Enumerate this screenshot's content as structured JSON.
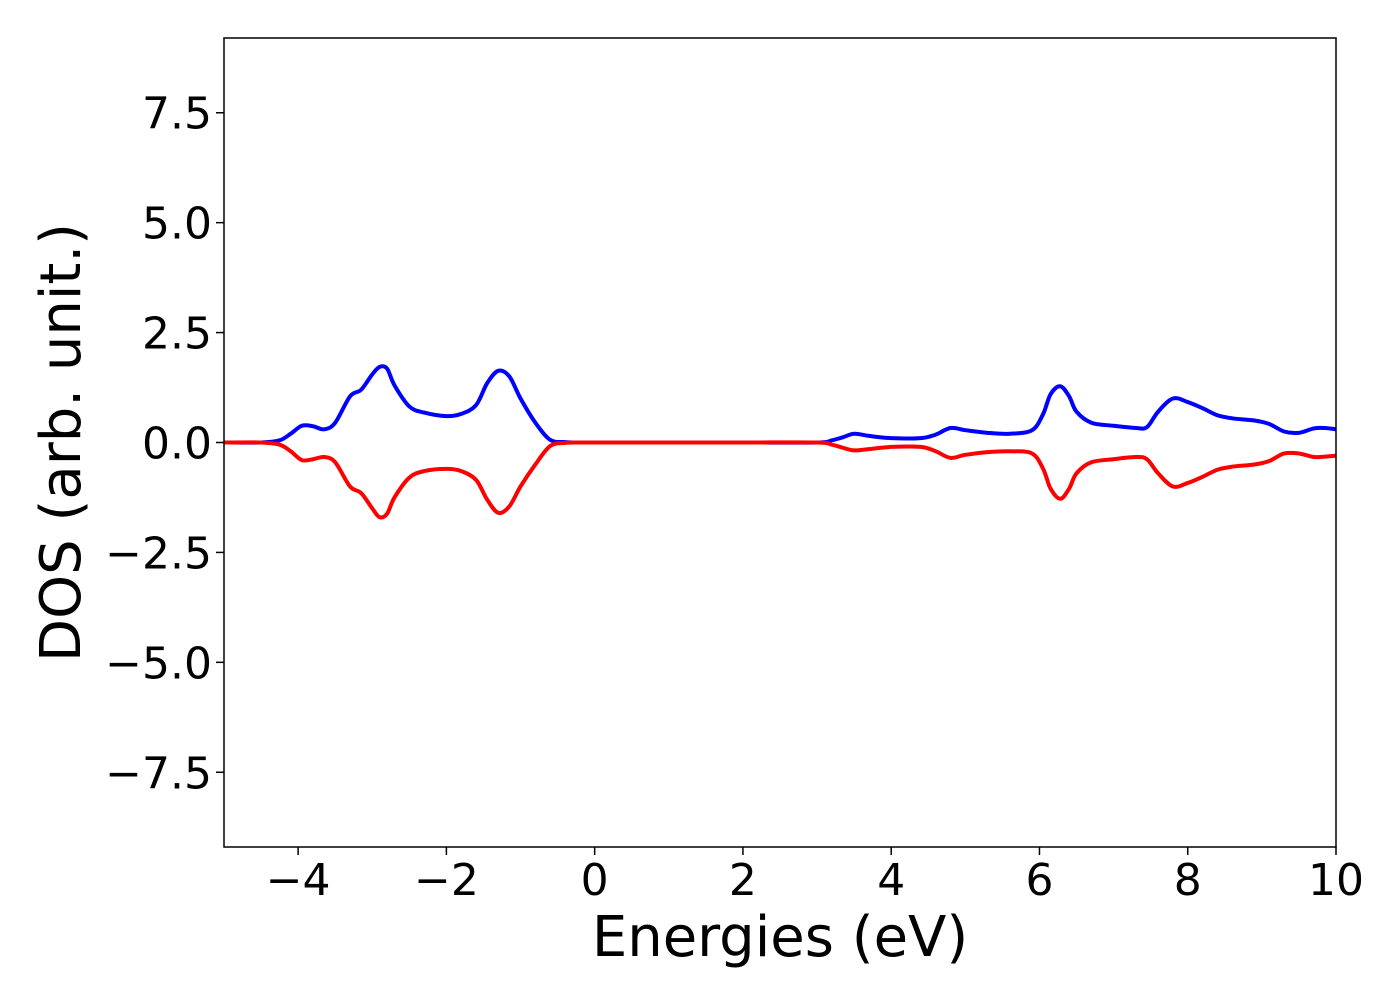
{
  "chart_data": {
    "type": "line",
    "title": "",
    "xlabel": "Energies (eV)",
    "ylabel": "DOS (arb. unit.)",
    "xlim": [
      -5,
      10
    ],
    "ylim": [
      -9.2,
      9.2
    ],
    "xticks": [
      -4,
      -2,
      0,
      2,
      4,
      6,
      8,
      10
    ],
    "xtick_labels": [
      "−4",
      "−2",
      "0",
      "2",
      "4",
      "6",
      "8",
      "10"
    ],
    "yticks": [
      7.5,
      5.0,
      2.5,
      0.0,
      -2.5,
      -5.0,
      -7.5
    ],
    "ytick_labels": [
      "7.5",
      "5.0",
      "2.5",
      "0.0",
      "−2.5",
      "−5.0",
      "−7.5"
    ],
    "grid": false,
    "series": [
      {
        "color": "#0000ff",
        "x": [
          -5,
          -4.5,
          -4.25,
          -4.1,
          -3.95,
          -3.8,
          -3.65,
          -3.5,
          -3.3,
          -3.15,
          -3.0,
          -2.9,
          -2.8,
          -2.7,
          -2.5,
          -2.3,
          -2.0,
          -1.8,
          -1.6,
          -1.45,
          -1.3,
          -1.15,
          -1.0,
          -0.8,
          -0.6,
          -0.4,
          -0.2,
          0,
          1,
          2,
          3.0,
          3.2,
          3.35,
          3.5,
          3.7,
          4.0,
          4.4,
          4.6,
          4.8,
          5.0,
          5.3,
          5.6,
          5.9,
          6.05,
          6.15,
          6.28,
          6.4,
          6.5,
          6.7,
          7.0,
          7.3,
          7.45,
          7.6,
          7.8,
          8.0,
          8.2,
          8.4,
          8.6,
          8.9,
          9.1,
          9.3,
          9.5,
          9.7,
          9.85,
          10.0
        ],
        "y": [
          0,
          0,
          0.05,
          0.2,
          0.38,
          0.37,
          0.3,
          0.45,
          1.05,
          1.2,
          1.55,
          1.72,
          1.68,
          1.3,
          0.82,
          0.68,
          0.6,
          0.65,
          0.85,
          1.35,
          1.63,
          1.5,
          1.0,
          0.45,
          0.06,
          0.01,
          0,
          0,
          0,
          0,
          0,
          0.05,
          0.12,
          0.2,
          0.15,
          0.1,
          0.1,
          0.18,
          0.33,
          0.28,
          0.22,
          0.2,
          0.28,
          0.65,
          1.1,
          1.28,
          1.05,
          0.7,
          0.45,
          0.38,
          0.33,
          0.35,
          0.7,
          1.0,
          0.92,
          0.78,
          0.62,
          0.55,
          0.5,
          0.42,
          0.25,
          0.22,
          0.32,
          0.33,
          0.3
        ]
      },
      {
        "color": "#ff0000",
        "x": [
          -5,
          -4.5,
          -4.25,
          -4.1,
          -3.95,
          -3.8,
          -3.65,
          -3.5,
          -3.3,
          -3.15,
          -3.0,
          -2.9,
          -2.8,
          -2.7,
          -2.5,
          -2.3,
          -2.0,
          -1.8,
          -1.6,
          -1.45,
          -1.3,
          -1.15,
          -1.0,
          -0.8,
          -0.6,
          -0.4,
          -0.2,
          0,
          1,
          2,
          3.0,
          3.2,
          3.35,
          3.5,
          3.7,
          4.0,
          4.4,
          4.6,
          4.8,
          5.0,
          5.3,
          5.6,
          5.9,
          6.05,
          6.15,
          6.28,
          6.4,
          6.5,
          6.7,
          7.0,
          7.3,
          7.45,
          7.6,
          7.8,
          8.0,
          8.2,
          8.4,
          8.6,
          8.9,
          9.1,
          9.3,
          9.5,
          9.7,
          9.85,
          10.0
        ],
        "y": [
          0,
          0,
          -0.05,
          -0.2,
          -0.4,
          -0.38,
          -0.33,
          -0.45,
          -1.0,
          -1.15,
          -1.5,
          -1.7,
          -1.62,
          -1.25,
          -0.8,
          -0.65,
          -0.6,
          -0.65,
          -0.85,
          -1.3,
          -1.6,
          -1.45,
          -1.0,
          -0.5,
          -0.08,
          -0.01,
          0,
          0,
          0,
          0,
          0,
          -0.05,
          -0.12,
          -0.18,
          -0.15,
          -0.1,
          -0.1,
          -0.2,
          -0.35,
          -0.28,
          -0.22,
          -0.2,
          -0.25,
          -0.6,
          -1.05,
          -1.28,
          -1.05,
          -0.7,
          -0.45,
          -0.38,
          -0.33,
          -0.38,
          -0.7,
          -1.0,
          -0.92,
          -0.78,
          -0.62,
          -0.55,
          -0.5,
          -0.42,
          -0.25,
          -0.25,
          -0.33,
          -0.32,
          -0.3
        ]
      }
    ]
  }
}
